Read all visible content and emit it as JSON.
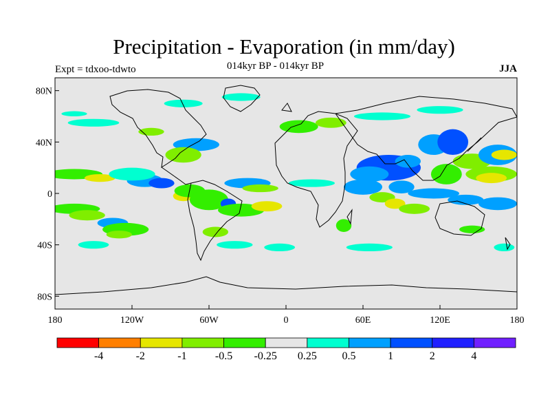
{
  "header": {
    "title": "Precipitation - Evaporation (in mm/day)",
    "subtitle": "014kyr BP - 014kyr BP",
    "experiment": "Expt = tdxoo-tdwto",
    "season": "JJA"
  },
  "map": {
    "projection": "cylindrical-equidistant",
    "lon_range": [
      -180,
      180
    ],
    "lat_range": [
      -90,
      90
    ],
    "background_color": "#e6e6e6",
    "coastline_color": "#000000",
    "y_ticks": [
      {
        "lat": 80,
        "label": "80N"
      },
      {
        "lat": 40,
        "label": "40N"
      },
      {
        "lat": 0,
        "label": "0"
      },
      {
        "lat": -40,
        "label": "40S"
      },
      {
        "lat": -80,
        "label": "80S"
      }
    ],
    "x_ticks": [
      {
        "lon": -180,
        "label": "180"
      },
      {
        "lon": -120,
        "label": "120W"
      },
      {
        "lon": -60,
        "label": "60W"
      },
      {
        "lon": 0,
        "label": "0"
      },
      {
        "lon": 60,
        "label": "60E"
      },
      {
        "lon": 120,
        "label": "120E"
      },
      {
        "lon": 180,
        "label": "180"
      }
    ]
  },
  "colorbar": {
    "colors": [
      "#ff0000",
      "#ff7f00",
      "#e6e600",
      "#80ee00",
      "#33ee00",
      "#e6e6e6",
      "#00ffd0",
      "#00a0ff",
      "#0050ff",
      "#2020ff",
      "#7020ff"
    ],
    "labels": [
      "-4",
      "-2",
      "-1",
      "-0.5",
      "-0.25",
      "0.25",
      "0.5",
      "1",
      "2",
      "4"
    ]
  },
  "anomalies": [
    {
      "lon": -165,
      "lat": 15,
      "rx": 22,
      "ry": 4,
      "color": "#33ee00"
    },
    {
      "lon": -145,
      "lat": 12,
      "rx": 12,
      "ry": 3,
      "color": "#e6e600"
    },
    {
      "lon": -165,
      "lat": -12,
      "rx": 20,
      "ry": 4,
      "color": "#33ee00"
    },
    {
      "lon": -155,
      "lat": -17,
      "rx": 14,
      "ry": 4,
      "color": "#80ee00"
    },
    {
      "lon": -135,
      "lat": -23,
      "rx": 12,
      "ry": 4,
      "color": "#00a0ff"
    },
    {
      "lon": -125,
      "lat": -28,
      "rx": 18,
      "ry": 5,
      "color": "#33ee00"
    },
    {
      "lon": -130,
      "lat": -32,
      "rx": 10,
      "ry": 3,
      "color": "#80ee00"
    },
    {
      "lon": -110,
      "lat": 10,
      "rx": 14,
      "ry": 5,
      "color": "#00a0ff"
    },
    {
      "lon": -97,
      "lat": 8,
      "rx": 10,
      "ry": 4,
      "color": "#0050ff"
    },
    {
      "lon": -120,
      "lat": 15,
      "rx": 18,
      "ry": 5,
      "color": "#00ffd0"
    },
    {
      "lon": -80,
      "lat": -2,
      "rx": 8,
      "ry": 4,
      "color": "#e6e600"
    },
    {
      "lon": -75,
      "lat": 2,
      "rx": 12,
      "ry": 5,
      "color": "#33ee00"
    },
    {
      "lon": -60,
      "lat": -5,
      "rx": 15,
      "ry": 8,
      "color": "#33ee00"
    },
    {
      "lon": -45,
      "lat": -8,
      "rx": 6,
      "ry": 4,
      "color": "#0050ff"
    },
    {
      "lon": -30,
      "lat": 8,
      "rx": 18,
      "ry": 4,
      "color": "#00a0ff"
    },
    {
      "lon": -20,
      "lat": 4,
      "rx": 14,
      "ry": 3,
      "color": "#80ee00"
    },
    {
      "lon": -35,
      "lat": -13,
      "rx": 18,
      "ry": 5,
      "color": "#33ee00"
    },
    {
      "lon": -15,
      "lat": -10,
      "rx": 12,
      "ry": 4,
      "color": "#e6e600"
    },
    {
      "lon": -55,
      "lat": -30,
      "rx": 10,
      "ry": 4,
      "color": "#80ee00"
    },
    {
      "lon": -40,
      "lat": -40,
      "rx": 14,
      "ry": 3,
      "color": "#00ffd0"
    },
    {
      "lon": -70,
      "lat": 38,
      "rx": 18,
      "ry": 5,
      "color": "#00a0ff"
    },
    {
      "lon": -80,
      "lat": 30,
      "rx": 14,
      "ry": 6,
      "color": "#80ee00"
    },
    {
      "lon": -105,
      "lat": 48,
      "rx": 10,
      "ry": 3,
      "color": "#80ee00"
    },
    {
      "lon": -150,
      "lat": 55,
      "rx": 20,
      "ry": 3,
      "color": "#00ffd0"
    },
    {
      "lon": -165,
      "lat": 62,
      "rx": 10,
      "ry": 2,
      "color": "#00ffd0"
    },
    {
      "lon": -80,
      "lat": 70,
      "rx": 15,
      "ry": 3,
      "color": "#00ffd0"
    },
    {
      "lon": -35,
      "lat": 75,
      "rx": 15,
      "ry": 3,
      "color": "#00ffd0"
    },
    {
      "lon": 10,
      "lat": 52,
      "rx": 15,
      "ry": 5,
      "color": "#33ee00"
    },
    {
      "lon": 35,
      "lat": 55,
      "rx": 12,
      "ry": 4,
      "color": "#80ee00"
    },
    {
      "lon": 75,
      "lat": 60,
      "rx": 22,
      "ry": 3,
      "color": "#00ffd0"
    },
    {
      "lon": 120,
      "lat": 65,
      "rx": 18,
      "ry": 3,
      "color": "#00ffd0"
    },
    {
      "lon": 20,
      "lat": 8,
      "rx": 18,
      "ry": 3,
      "color": "#00ffd0"
    },
    {
      "lon": 60,
      "lat": 5,
      "rx": 15,
      "ry": 6,
      "color": "#00a0ff"
    },
    {
      "lon": 80,
      "lat": 20,
      "rx": 25,
      "ry": 10,
      "color": "#0050ff"
    },
    {
      "lon": 65,
      "lat": 15,
      "rx": 15,
      "ry": 6,
      "color": "#00a0ff"
    },
    {
      "lon": 90,
      "lat": 5,
      "rx": 10,
      "ry": 5,
      "color": "#00a0ff"
    },
    {
      "lon": 95,
      "lat": 25,
      "rx": 10,
      "ry": 5,
      "color": "#00a0ff"
    },
    {
      "lon": 75,
      "lat": -3,
      "rx": 10,
      "ry": 4,
      "color": "#80ee00"
    },
    {
      "lon": 85,
      "lat": -8,
      "rx": 8,
      "ry": 4,
      "color": "#e6e600"
    },
    {
      "lon": 115,
      "lat": 38,
      "rx": 12,
      "ry": 8,
      "color": "#00a0ff"
    },
    {
      "lon": 130,
      "lat": 40,
      "rx": 12,
      "ry": 10,
      "color": "#0050ff"
    },
    {
      "lon": 125,
      "lat": 15,
      "rx": 12,
      "ry": 8,
      "color": "#33ee00"
    },
    {
      "lon": 145,
      "lat": 25,
      "rx": 15,
      "ry": 6,
      "color": "#80ee00"
    },
    {
      "lon": 165,
      "lat": 30,
      "rx": 15,
      "ry": 8,
      "color": "#00a0ff"
    },
    {
      "lon": 160,
      "lat": 15,
      "rx": 20,
      "ry": 6,
      "color": "#80ee00"
    },
    {
      "lon": 170,
      "lat": 30,
      "rx": 10,
      "ry": 4,
      "color": "#e6e600"
    },
    {
      "lon": 160,
      "lat": 12,
      "rx": 12,
      "ry": 4,
      "color": "#e6e600"
    },
    {
      "lon": 115,
      "lat": 0,
      "rx": 20,
      "ry": 4,
      "color": "#00a0ff"
    },
    {
      "lon": 140,
      "lat": -5,
      "rx": 14,
      "ry": 4,
      "color": "#00a0ff"
    },
    {
      "lon": 165,
      "lat": -8,
      "rx": 15,
      "ry": 5,
      "color": "#00a0ff"
    },
    {
      "lon": 100,
      "lat": -12,
      "rx": 12,
      "ry": 4,
      "color": "#80ee00"
    },
    {
      "lon": 45,
      "lat": -25,
      "rx": 6,
      "ry": 5,
      "color": "#33ee00"
    },
    {
      "lon": 65,
      "lat": -42,
      "rx": 18,
      "ry": 3,
      "color": "#00ffd0"
    },
    {
      "lon": 145,
      "lat": -28,
      "rx": 10,
      "ry": 3,
      "color": "#33ee00"
    },
    {
      "lon": 170,
      "lat": -42,
      "rx": 8,
      "ry": 3,
      "color": "#00ffd0"
    },
    {
      "lon": -150,
      "lat": -40,
      "rx": 12,
      "ry": 3,
      "color": "#00ffd0"
    },
    {
      "lon": -5,
      "lat": -42,
      "rx": 12,
      "ry": 3,
      "color": "#00ffd0"
    }
  ]
}
